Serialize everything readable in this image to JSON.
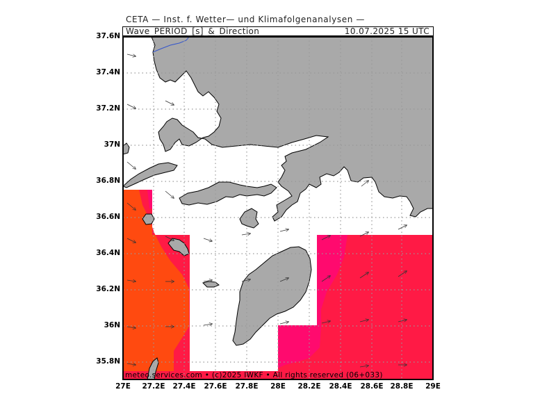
{
  "header": {
    "title": "CETA — Inst. f. Wetter— und Klimafolgenanalysen —",
    "parameter": "Wave_PERIOD_[s]_&_Direction",
    "timestamp": "10.07.2025 15 UTC"
  },
  "axes": {
    "lat_labels": [
      "37.6N",
      "37.4N",
      "37.2N",
      "37N",
      "36.8N",
      "36.6N",
      "36.4N",
      "36.2N",
      "36N",
      "35.8N"
    ],
    "lon_labels": [
      "27E",
      "27.2E",
      "27.4E",
      "27.6E",
      "27.8E",
      "28E",
      "28.2E",
      "28.4E",
      "28.6E",
      "28.8E",
      "29E"
    ]
  },
  "footer": {
    "text": "meteo.services.com • (c)2025 IWKF • All rights reserved (06+033)"
  },
  "colors": {
    "land": "#a9a9a9",
    "sea": "#ffffff",
    "period_orange": "#ff4a10",
    "period_red": "#ff1a45",
    "period_magenta": "#ff0a6e",
    "grid": "#999999"
  }
}
